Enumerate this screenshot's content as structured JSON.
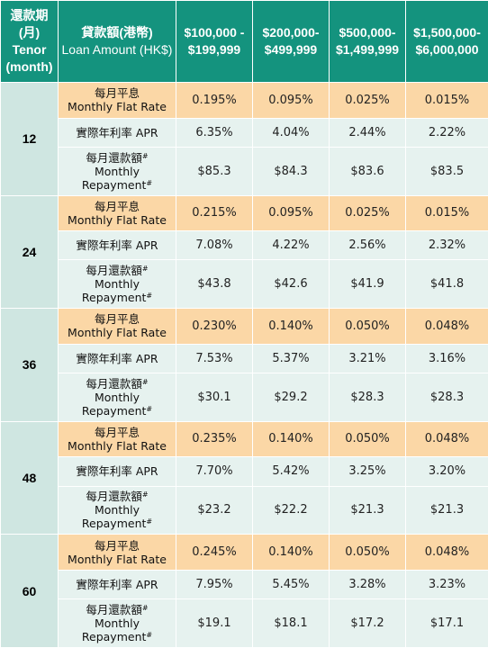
{
  "header": {
    "tenor": {
      "zh": "還款期",
      "zh2": "(月)",
      "en": "Tenor",
      "en2": "(month)"
    },
    "loan": {
      "zh": "貸款額(港幣)",
      "en": "Loan Amount (HK$)"
    },
    "ranges": [
      {
        "line1": "$100,000 -",
        "line2": "$199,999"
      },
      {
        "line1": "$200,000-",
        "line2": "$499,999"
      },
      {
        "line1": "$500,000-",
        "line2": "$1,499,999"
      },
      {
        "line1": "$1,500,000-",
        "line2": "$6,000,000"
      }
    ]
  },
  "labels": {
    "flat_zh": "每月平息",
    "flat_en": "Monthly Flat Rate",
    "apr": "實際年利率 APR",
    "pay_zh": "每月還款額",
    "pay_en1": "Monthly",
    "pay_en2": "Repayment",
    "footnote_mark": "#"
  },
  "groups": [
    {
      "tenor": "12",
      "flat": [
        "0.195%",
        "0.095%",
        "0.025%",
        "0.015%"
      ],
      "apr": [
        "6.35%",
        "4.04%",
        "2.44%",
        "2.22%"
      ],
      "pay": [
        "$85.3",
        "$84.3",
        "$83.6",
        "$83.5"
      ]
    },
    {
      "tenor": "24",
      "flat": [
        "0.215%",
        "0.095%",
        "0.025%",
        "0.015%"
      ],
      "apr": [
        "7.08%",
        "4.22%",
        "2.56%",
        "2.32%"
      ],
      "pay": [
        "$43.8",
        "$42.6",
        "$41.9",
        "$41.8"
      ]
    },
    {
      "tenor": "36",
      "flat": [
        "0.230%",
        "0.140%",
        "0.050%",
        "0.048%"
      ],
      "apr": [
        "7.53%",
        "5.37%",
        "3.21%",
        "3.16%"
      ],
      "pay": [
        "$30.1",
        "$29.2",
        "$28.3",
        "$28.3"
      ]
    },
    {
      "tenor": "48",
      "flat": [
        "0.235%",
        "0.140%",
        "0.050%",
        "0.048%"
      ],
      "apr": [
        "7.70%",
        "5.42%",
        "3.25%",
        "3.20%"
      ],
      "pay": [
        "$23.2",
        "$22.2",
        "$21.3",
        "$21.3"
      ]
    },
    {
      "tenor": "60",
      "flat": [
        "0.245%",
        "0.140%",
        "0.050%",
        "0.048%"
      ],
      "apr": [
        "7.95%",
        "5.45%",
        "3.28%",
        "3.23%"
      ],
      "pay": [
        "$19.1",
        "$18.1",
        "$17.2",
        "$17.1"
      ]
    }
  ],
  "colors": {
    "header_bg": "#14937e",
    "tenor_bg": "#cfe6e1",
    "flat_row_bg": "#fbd7a6",
    "light_row_bg": "#e6f2ef"
  }
}
